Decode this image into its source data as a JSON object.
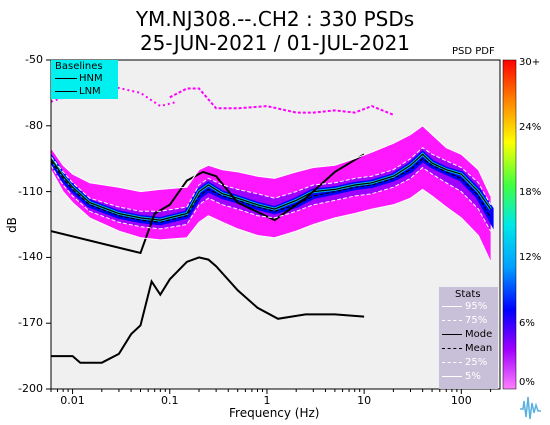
{
  "chart_data": {
    "type": "line",
    "title_line1": "YM.NJ308.--.CH2 : 330 PSDs",
    "title_line2": "25-JUN-2021 / 01-JUL-2021",
    "xlabel": "Frequency (Hz)",
    "ylabel": "dB",
    "x_scale": "log",
    "xlim": [
      0.006,
      250
    ],
    "ylim": [
      -200,
      -50
    ],
    "x_ticks": [
      0.01,
      0.1,
      1,
      10,
      100
    ],
    "x_tick_labels": [
      "0.01",
      "0.1",
      "1",
      "10",
      "100"
    ],
    "y_ticks": [
      -50,
      -80,
      -110,
      -140,
      -170,
      -200
    ],
    "y_tick_labels": [
      "-50",
      "-80",
      "-110",
      "-140",
      "-170",
      "-200"
    ],
    "pdf_label": "PSD PDF",
    "colorbar": {
      "ticks": [
        "30+",
        "24%",
        "18%",
        "12%",
        "6%",
        "0%"
      ],
      "colors": [
        "#ff0000",
        "#ffb000",
        "#ffff00",
        "#40ff40",
        "#00e8e8",
        "#00a0ff",
        "#0000ff",
        "#a000ff",
        "#ff00ff"
      ]
    },
    "baselines_legend": {
      "title": "Baselines",
      "items": [
        "HNM",
        "LNM"
      ]
    },
    "stats_legend": {
      "title": "Stats",
      "items": [
        "95%",
        "75%",
        "Mode",
        "Mean",
        "25%",
        "5%"
      ]
    },
    "series": [
      {
        "name": "HNM",
        "x": [
          0.006,
          0.05,
          0.07,
          0.1,
          0.15,
          0.22,
          0.3,
          0.5,
          1.2,
          2.5,
          5,
          10
        ],
        "y": [
          -128,
          -138,
          -120,
          -116,
          -105,
          -101,
          -103,
          -115,
          -123,
          -113,
          -101,
          -93
        ]
      },
      {
        "name": "LNM",
        "x": [
          0.006,
          0.01,
          0.012,
          0.02,
          0.03,
          0.04,
          0.05,
          0.065,
          0.08,
          0.1,
          0.15,
          0.2,
          0.25,
          0.3,
          0.5,
          0.8,
          1.3,
          2.5,
          5,
          10
        ],
        "y": [
          -185,
          -185,
          -188,
          -188,
          -184,
          -175,
          -171,
          -151,
          -157,
          -150,
          -142,
          -140,
          -141,
          -144,
          -155,
          -163,
          -168,
          -166,
          -166,
          -167
        ]
      },
      {
        "name": "Mode",
        "x": [
          0.006,
          0.008,
          0.01,
          0.015,
          0.03,
          0.05,
          0.08,
          0.15,
          0.2,
          0.25,
          0.35,
          0.5,
          0.8,
          1.2,
          2,
          3,
          5,
          8,
          12,
          20,
          30,
          40,
          50,
          70,
          100,
          150,
          200
        ],
        "y": [
          -95,
          -103,
          -108,
          -115,
          -120,
          -122,
          -123,
          -120,
          -110,
          -107,
          -111,
          -113,
          -116,
          -118,
          -114,
          -110,
          -109,
          -107,
          -106,
          -103,
          -98,
          -93,
          -97,
          -100,
          -102,
          -110,
          -118
        ]
      },
      {
        "name": "Mean",
        "x": [
          0.006,
          0.008,
          0.01,
          0.015,
          0.03,
          0.05,
          0.08,
          0.15,
          0.2,
          0.25,
          0.35,
          0.5,
          0.8,
          1.2,
          2,
          3,
          5,
          8,
          12,
          20,
          30,
          40,
          50,
          70,
          100,
          150,
          200
        ],
        "y": [
          -96,
          -104,
          -109,
          -116,
          -121,
          -123,
          -124,
          -121,
          -112,
          -109,
          -112,
          -114,
          -117,
          -119,
          -116,
          -112,
          -110,
          -108,
          -107,
          -104,
          -100,
          -95,
          -98,
          -101,
          -104,
          -112,
          -122
        ]
      },
      {
        "name": "95%",
        "x": [
          0.006,
          0.008,
          0.01,
          0.015,
          0.03,
          0.05,
          0.08,
          0.15,
          0.2,
          0.25,
          0.35,
          0.5,
          0.8,
          1.2,
          2,
          3,
          5,
          8,
          12,
          20,
          30,
          40,
          50,
          70,
          100,
          150,
          200
        ],
        "y": [
          -90,
          -98,
          -102,
          -106,
          -108,
          -110,
          -109,
          -108,
          -100,
          -98,
          -100,
          -101,
          -103,
          -104,
          -101,
          -99,
          -98,
          -95,
          -92,
          -88,
          -84,
          -80,
          -84,
          -90,
          -93,
          -100,
          -112
        ]
      },
      {
        "name": "75%",
        "x": [
          0.006,
          0.008,
          0.01,
          0.015,
          0.03,
          0.05,
          0.08,
          0.15,
          0.2,
          0.25,
          0.35,
          0.5,
          0.8,
          1.2,
          2,
          3,
          5,
          8,
          12,
          20,
          30,
          40,
          50,
          70,
          100,
          150,
          200
        ],
        "y": [
          -94,
          -101,
          -106,
          -113,
          -117,
          -119,
          -119,
          -117,
          -107,
          -104,
          -107,
          -109,
          -111,
          -113,
          -110,
          -107,
          -106,
          -104,
          -103,
          -100,
          -95,
          -90,
          -93,
          -96,
          -99,
          -106,
          -116
        ]
      },
      {
        "name": "25%",
        "x": [
          0.006,
          0.008,
          0.01,
          0.015,
          0.03,
          0.05,
          0.08,
          0.15,
          0.2,
          0.25,
          0.35,
          0.5,
          0.8,
          1.2,
          2,
          3,
          5,
          8,
          12,
          20,
          30,
          40,
          50,
          70,
          100,
          150,
          200
        ],
        "y": [
          -98,
          -107,
          -112,
          -119,
          -124,
          -126,
          -127,
          -125,
          -116,
          -113,
          -116,
          -118,
          -121,
          -122,
          -119,
          -116,
          -114,
          -112,
          -111,
          -108,
          -104,
          -99,
          -102,
          -106,
          -110,
          -118,
          -128
        ]
      },
      {
        "name": "5%",
        "x": [
          0.006,
          0.008,
          0.01,
          0.015,
          0.03,
          0.05,
          0.08,
          0.15,
          0.2,
          0.25,
          0.35,
          0.5,
          0.8,
          1.2,
          2,
          3,
          5,
          8,
          12,
          20,
          30,
          40,
          50,
          70,
          100,
          150,
          200
        ],
        "y": [
          -100,
          -110,
          -115,
          -122,
          -128,
          -131,
          -132,
          -131,
          -124,
          -121,
          -124,
          -127,
          -130,
          -131,
          -128,
          -125,
          -122,
          -120,
          -118,
          -116,
          -113,
          -109,
          -112,
          -117,
          -122,
          -130,
          -142
        ]
      }
    ],
    "outlier_track": {
      "x": [
        0.1,
        0.15,
        0.2,
        0.3,
        0.5,
        1,
        2,
        3,
        5,
        8,
        12,
        20
      ],
      "y": [
        -67,
        -63,
        -63,
        -72,
        -72,
        -71,
        -74,
        -74,
        -73,
        -74,
        -71,
        -75
      ]
    },
    "outlier_track_upper": {
      "x": [
        0.006,
        0.02,
        0.05,
        0.08,
        0.12
      ],
      "y": [
        -69,
        -61,
        -65,
        -71,
        -69
      ]
    }
  },
  "colors": {
    "plot_bg": "#f0f0f0",
    "baselines_bg": "#00f0f0",
    "stats_bg": "#c8c0d8",
    "pdf_magenta": "#ff00ff",
    "pdf_purple": "#a000ff",
    "pdf_blue": "#0000ff",
    "pdf_cyan": "#00e8e8",
    "pdf_green": "#40ff40",
    "pdf_yellow": "#ffff00"
  },
  "logo_icon": "seismogram-logo-icon"
}
